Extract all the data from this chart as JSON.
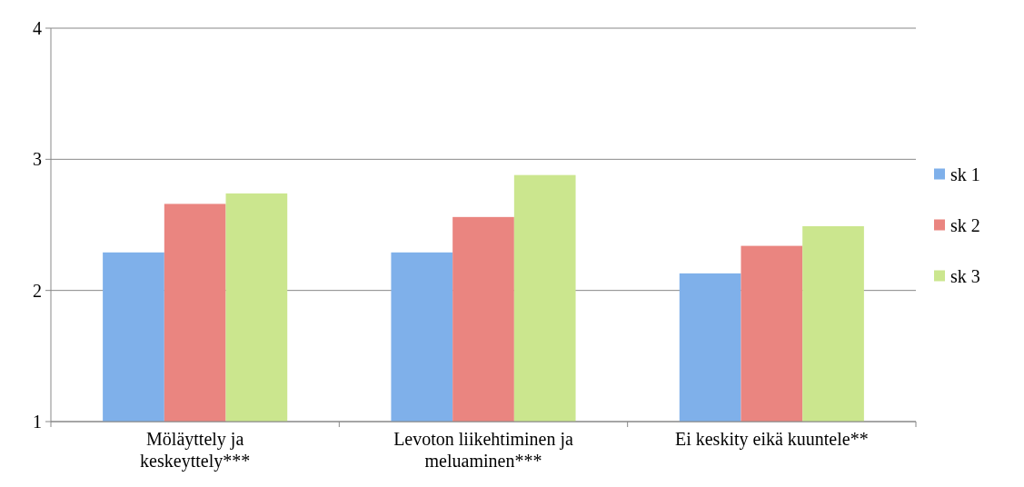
{
  "chart_data": {
    "type": "bar",
    "categories": [
      "Möläyttely ja keskeyttely***",
      "Levoton liikehtiminen ja meluaminen***",
      "Ei keskity eikä kuuntele**"
    ],
    "series": [
      {
        "name": "sk 1",
        "color": "#7fb0ea",
        "values": [
          2.29,
          2.29,
          2.13
        ]
      },
      {
        "name": "sk 2",
        "color": "#ea8580",
        "values": [
          2.66,
          2.56,
          2.34
        ]
      },
      {
        "name": "sk 3",
        "color": "#cbe68e",
        "values": [
          2.74,
          2.88,
          2.49
        ]
      }
    ],
    "ylim": [
      1,
      4
    ],
    "yticks": [
      1,
      2,
      3,
      4
    ],
    "grid": "y",
    "legend": "right"
  }
}
